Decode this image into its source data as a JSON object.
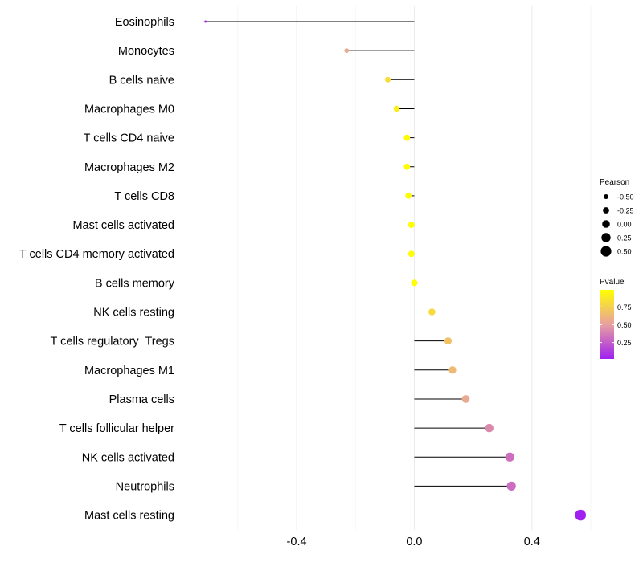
{
  "chart_data": {
    "type": "lollipop",
    "categories": [
      "Eosinophils",
      "Monocytes",
      "B cells naive",
      "Macrophages M0",
      "T cells CD4 naive",
      "Macrophages M2",
      "T cells CD8",
      "Mast cells activated",
      "T cells CD4 memory activated",
      "B cells memory",
      "NK cells resting",
      "T cells regulatory  Tregs",
      "Macrophages M1",
      "Plasma cells",
      "T cells follicular helper",
      "NK cells activated",
      "Neutrophils",
      "Mast cells resting"
    ],
    "pearson": [
      -0.71,
      -0.23,
      -0.09,
      -0.06,
      -0.025,
      -0.025,
      -0.02,
      -0.01,
      -0.01,
      0.0,
      0.06,
      0.115,
      0.13,
      0.175,
      0.255,
      0.325,
      0.33,
      0.565
    ],
    "pvalue": [
      0.05,
      0.55,
      0.82,
      0.92,
      0.97,
      0.97,
      0.97,
      0.98,
      0.98,
      0.99,
      0.8,
      0.68,
      0.64,
      0.55,
      0.42,
      0.32,
      0.31,
      0.02
    ],
    "xlim": [
      -0.78,
      0.6
    ],
    "x_ticks": [
      -0.4,
      0.0,
      0.4
    ],
    "x_tick_labels": [
      "-0.4",
      "0.0",
      "0.4"
    ],
    "grid": true,
    "legend_size": {
      "title": "Pearson",
      "values": [
        -0.5,
        -0.25,
        0.0,
        0.25,
        0.5
      ],
      "labels": [
        "-0.50",
        "-0.25",
        "0.00",
        "0.25",
        "0.50"
      ]
    },
    "legend_color": {
      "title": "Pvalue",
      "range": [
        0.02,
        0.99
      ],
      "breaks": [
        0.25,
        0.5,
        0.75
      ],
      "labels": [
        "0.25",
        "0.50",
        "0.75"
      ],
      "low_color": "#a020f0",
      "mid_color": "#e8a0a0",
      "high_color": "#ffff00"
    }
  }
}
